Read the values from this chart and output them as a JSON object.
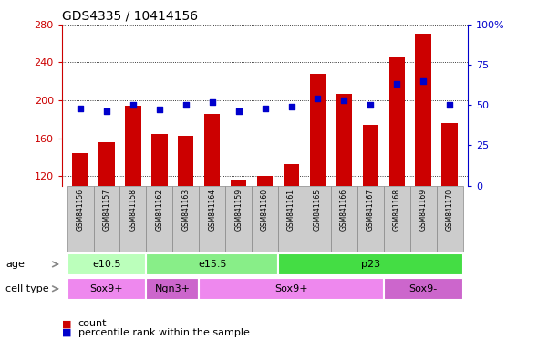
{
  "title": "GDS4335 / 10414156",
  "samples": [
    "GSM841156",
    "GSM841157",
    "GSM841158",
    "GSM841162",
    "GSM841163",
    "GSM841164",
    "GSM841159",
    "GSM841160",
    "GSM841161",
    "GSM841165",
    "GSM841166",
    "GSM841167",
    "GSM841168",
    "GSM841169",
    "GSM841170"
  ],
  "counts": [
    144,
    156,
    194,
    164,
    162,
    186,
    116,
    120,
    133,
    228,
    207,
    174,
    246,
    270,
    176
  ],
  "percentile_ranks": [
    48,
    46,
    50,
    47,
    50,
    52,
    46,
    48,
    49,
    54,
    53,
    50,
    63,
    65,
    50
  ],
  "ylim_left": [
    110,
    280
  ],
  "ylim_right": [
    0,
    100
  ],
  "yticks_left": [
    120,
    160,
    200,
    240,
    280
  ],
  "yticks_right": [
    0,
    25,
    50,
    75,
    100
  ],
  "bar_color": "#cc0000",
  "dot_color": "#0000cc",
  "age_groups": [
    {
      "label": "e10.5",
      "start": 0,
      "end": 3,
      "color": "#bbffbb"
    },
    {
      "label": "e15.5",
      "start": 3,
      "end": 8,
      "color": "#88ee88"
    },
    {
      "label": "p23",
      "start": 8,
      "end": 15,
      "color": "#44dd44"
    }
  ],
  "cell_type_groups": [
    {
      "label": "Sox9+",
      "start": 0,
      "end": 3,
      "color": "#ee88ee"
    },
    {
      "label": "Ngn3+",
      "start": 3,
      "end": 5,
      "color": "#cc66cc"
    },
    {
      "label": "Sox9+",
      "start": 5,
      "end": 12,
      "color": "#ee88ee"
    },
    {
      "label": "Sox9-",
      "start": 12,
      "end": 15,
      "color": "#cc66cc"
    }
  ],
  "age_label": "age",
  "cell_type_label": "cell type",
  "legend_count_label": "count",
  "legend_pct_label": "percentile rank within the sample",
  "sample_box_color": "#cccccc",
  "sample_box_edge": "#888888"
}
